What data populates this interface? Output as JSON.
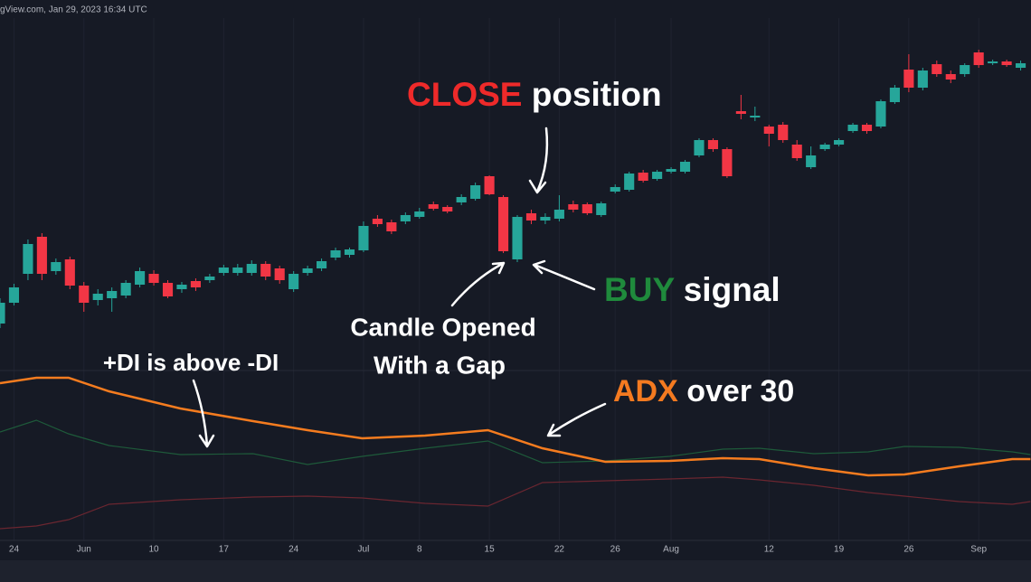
{
  "header": {
    "text": "gView.com, Jan 29, 2023 16:34 UTC"
  },
  "annotations": {
    "close": {
      "parts": [
        "CLOSE",
        " position"
      ],
      "colors": [
        "#ee2a2a",
        "#ffffff"
      ]
    },
    "buy": {
      "parts": [
        "BUY",
        " signal"
      ],
      "colors": [
        "#1f8a3c",
        "#ffffff"
      ]
    },
    "gap": {
      "lines": [
        "Candle Opened",
        "With a Gap"
      ]
    },
    "di": {
      "text": "+DI is above -DI"
    },
    "adx": {
      "parts": [
        "ADX",
        " over 30"
      ],
      "colors": [
        "#f47a20",
        "#ffffff"
      ]
    }
  },
  "chart_data": [
    {
      "type": "candlestick",
      "up_color": "#26a69a",
      "down_color": "#f23645",
      "xlim": [
        0,
        73.74
      ],
      "ylim": [
        0,
        360
      ],
      "open": [
        42,
        65,
        97,
        138,
        100,
        113,
        84,
        68,
        70,
        73,
        85,
        97,
        87,
        80,
        89,
        90,
        98,
        98,
        98,
        108,
        103,
        80,
        98,
        103,
        115,
        118,
        123,
        158,
        154,
        155,
        160,
        174,
        171,
        176,
        180,
        205,
        182,
        113,
        164,
        156,
        158,
        174,
        174,
        162,
        188,
        190,
        209,
        202,
        210,
        210,
        228,
        245,
        235,
        277,
        270,
        260,
        262,
        240,
        215,
        235,
        240,
        255,
        262,
        260,
        287,
        323,
        303,
        329,
        318,
        318,
        342,
        330,
        332,
        325
      ],
      "high": [
        70,
        86,
        135,
        142,
        114,
        116,
        88,
        80,
        82,
        90,
        104,
        101,
        90,
        88,
        92,
        97,
        107,
        108,
        112,
        111,
        106,
        100,
        106,
        114,
        126,
        126,
        155,
        162,
        157,
        165,
        170,
        177,
        173,
        185,
        198,
        206,
        184,
        162,
        168,
        164,
        184,
        178,
        176,
        177,
        196,
        210,
        212,
        212,
        215,
        223,
        247,
        247,
        237,
        295,
        282,
        262,
        265,
        245,
        238,
        242,
        247,
        264,
        264,
        290,
        306,
        340,
        325,
        333,
        322,
        330,
        345,
        334,
        334,
        333
      ],
      "low": [
        37,
        62,
        90,
        90,
        96,
        80,
        55,
        62,
        55,
        70,
        82,
        84,
        70,
        76,
        78,
        87,
        95,
        95,
        95,
        90,
        86,
        77,
        95,
        100,
        112,
        115,
        121,
        149,
        141,
        152,
        158,
        167,
        164,
        173,
        178,
        184,
        120,
        110,
        152,
        152,
        155,
        165,
        162,
        160,
        186,
        188,
        198,
        200,
        208,
        208,
        226,
        232,
        203,
        268,
        266,
        238,
        242,
        222,
        213,
        233,
        238,
        253,
        252,
        258,
        285,
        298,
        300,
        315,
        308,
        315,
        325,
        328,
        326,
        322
      ],
      "close": [
        65,
        82,
        130,
        97,
        110,
        84,
        65,
        75,
        78,
        87,
        100,
        87,
        72,
        85,
        82,
        94,
        104,
        104,
        108,
        94,
        90,
        97,
        103,
        111,
        123,
        124,
        150,
        152,
        144,
        162,
        166,
        169,
        166,
        182,
        195,
        185,
        122,
        160,
        156,
        160,
        168,
        168,
        164,
        175,
        193,
        208,
        200,
        210,
        213,
        221,
        245,
        235,
        205,
        274,
        272,
        252,
        245,
        225,
        228,
        240,
        245,
        262,
        255,
        288,
        303,
        303,
        322,
        318,
        312,
        328,
        328,
        332,
        328,
        330
      ],
      "xticks": [
        {
          "value": 1,
          "label": "24"
        },
        {
          "value": 6,
          "label": "Jun"
        },
        {
          "value": 11,
          "label": "10"
        },
        {
          "value": 16,
          "label": "17"
        },
        {
          "value": 21,
          "label": "24"
        },
        {
          "value": 26,
          "label": "Jul"
        },
        {
          "value": 30,
          "label": "8"
        },
        {
          "value": 35,
          "label": "15"
        },
        {
          "value": 40,
          "label": "22"
        },
        {
          "value": 44,
          "label": "26"
        },
        {
          "value": 48,
          "label": "Aug"
        },
        {
          "value": 55,
          "label": "12"
        },
        {
          "value": 60,
          "label": "19"
        },
        {
          "value": 65,
          "label": "26"
        },
        {
          "value": 70,
          "label": "Sep"
        }
      ],
      "grid": true
    },
    {
      "type": "line",
      "xlim": [
        0,
        73.74
      ],
      "ylim": [
        0,
        180
      ],
      "x": [
        0,
        2.6,
        4.9,
        7.8,
        12.9,
        18.1,
        22,
        25.9,
        30.4,
        34.9,
        38.8,
        43.3,
        47.9,
        51.7,
        54.3,
        58.2,
        62.1,
        64.7,
        68.6,
        72.4,
        73.7
      ],
      "series": [
        {
          "color": "#f57c1f",
          "width": 2.5,
          "values": [
            166,
            172,
            172,
            157,
            138,
            124,
            114,
            105,
            108,
            114,
            94,
            79,
            80,
            83,
            82,
            72,
            64,
            65,
            74,
            82,
            82
          ]
        },
        {
          "color": "#1e5a3a",
          "width": 1.2,
          "values": [
            112,
            125,
            110,
            97,
            87,
            88,
            76,
            85,
            94,
            102,
            78,
            80,
            85,
            93,
            94,
            88,
            90,
            96,
            95,
            90,
            87
          ]
        },
        {
          "color": "#6b2630",
          "width": 1.2,
          "values": [
            5,
            8,
            15,
            32,
            37,
            40,
            41,
            39,
            33,
            30,
            56,
            58,
            60,
            62,
            59,
            53,
            45,
            41,
            35,
            32,
            35
          ]
        }
      ]
    }
  ]
}
